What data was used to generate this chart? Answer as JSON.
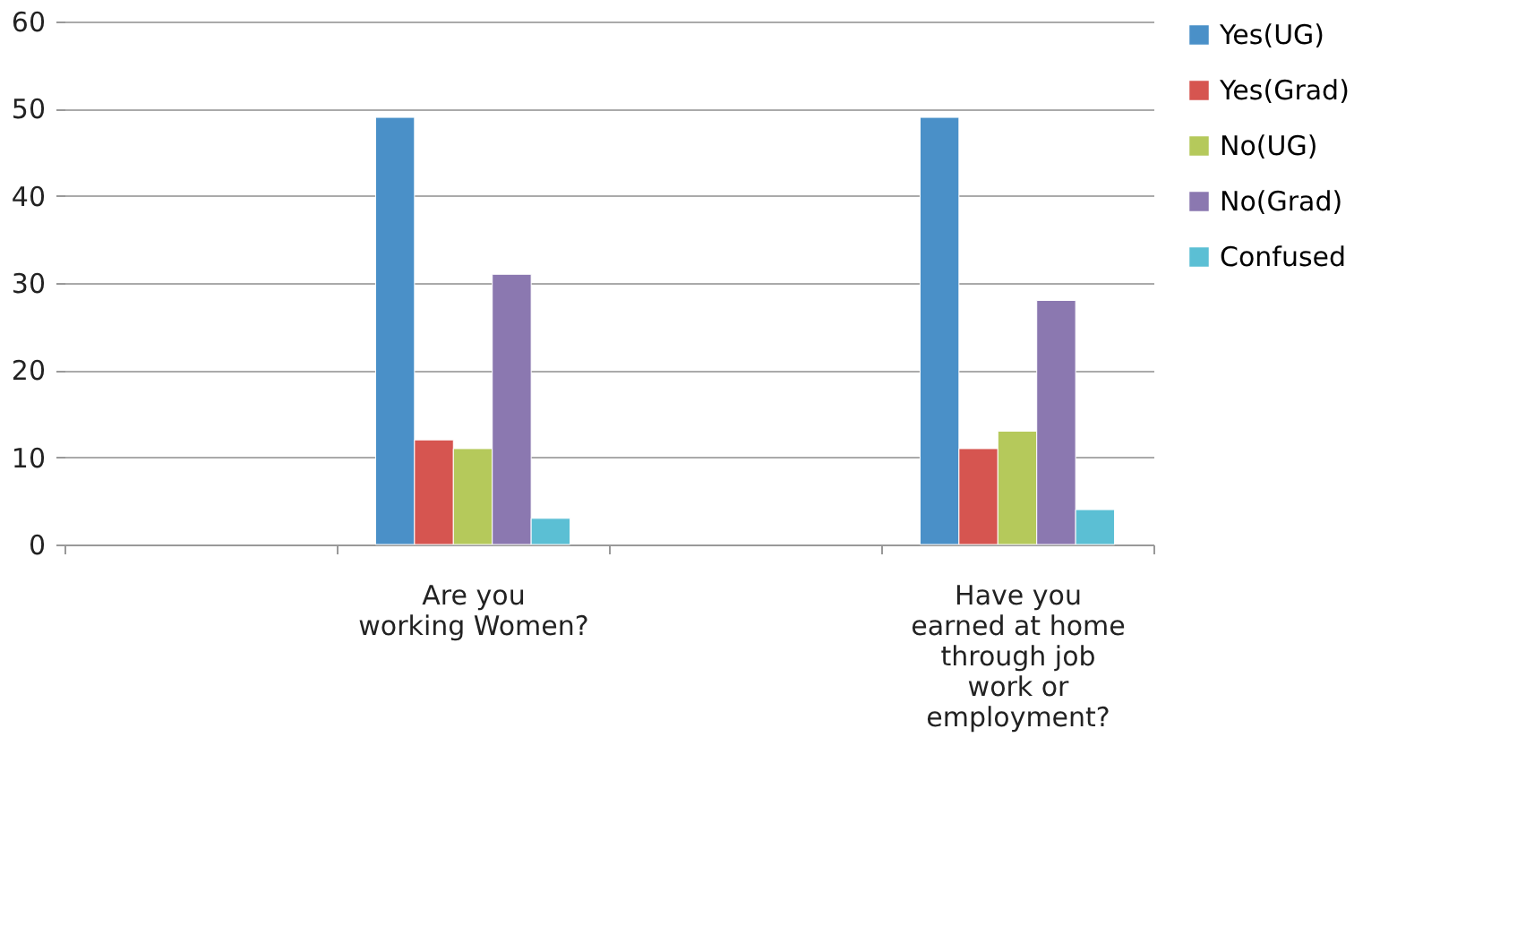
{
  "chart_data": {
    "type": "bar",
    "categories": [
      null,
      "Are you working Women?",
      null,
      "Have you earned at home through job work or employment?"
    ],
    "series": [
      {
        "name": "Yes(UG)",
        "color": "#4a90c8",
        "values": [
          null,
          49,
          null,
          49
        ]
      },
      {
        "name": "Yes(Grad)",
        "color": "#d65550",
        "values": [
          null,
          12,
          null,
          11
        ]
      },
      {
        "name": "No(UG)",
        "color": "#b5c95b",
        "values": [
          null,
          11,
          null,
          13
        ]
      },
      {
        "name": "No(Grad)",
        "color": "#8b78b0",
        "values": [
          null,
          31,
          null,
          28
        ]
      },
      {
        "name": "Confused",
        "color": "#5bbfd4",
        "values": [
          null,
          3,
          null,
          4
        ]
      }
    ],
    "ylim": [
      0,
      60
    ],
    "yticks": [
      0,
      10,
      20,
      30,
      40,
      50,
      60
    ],
    "grid": "y",
    "legend": "right"
  }
}
